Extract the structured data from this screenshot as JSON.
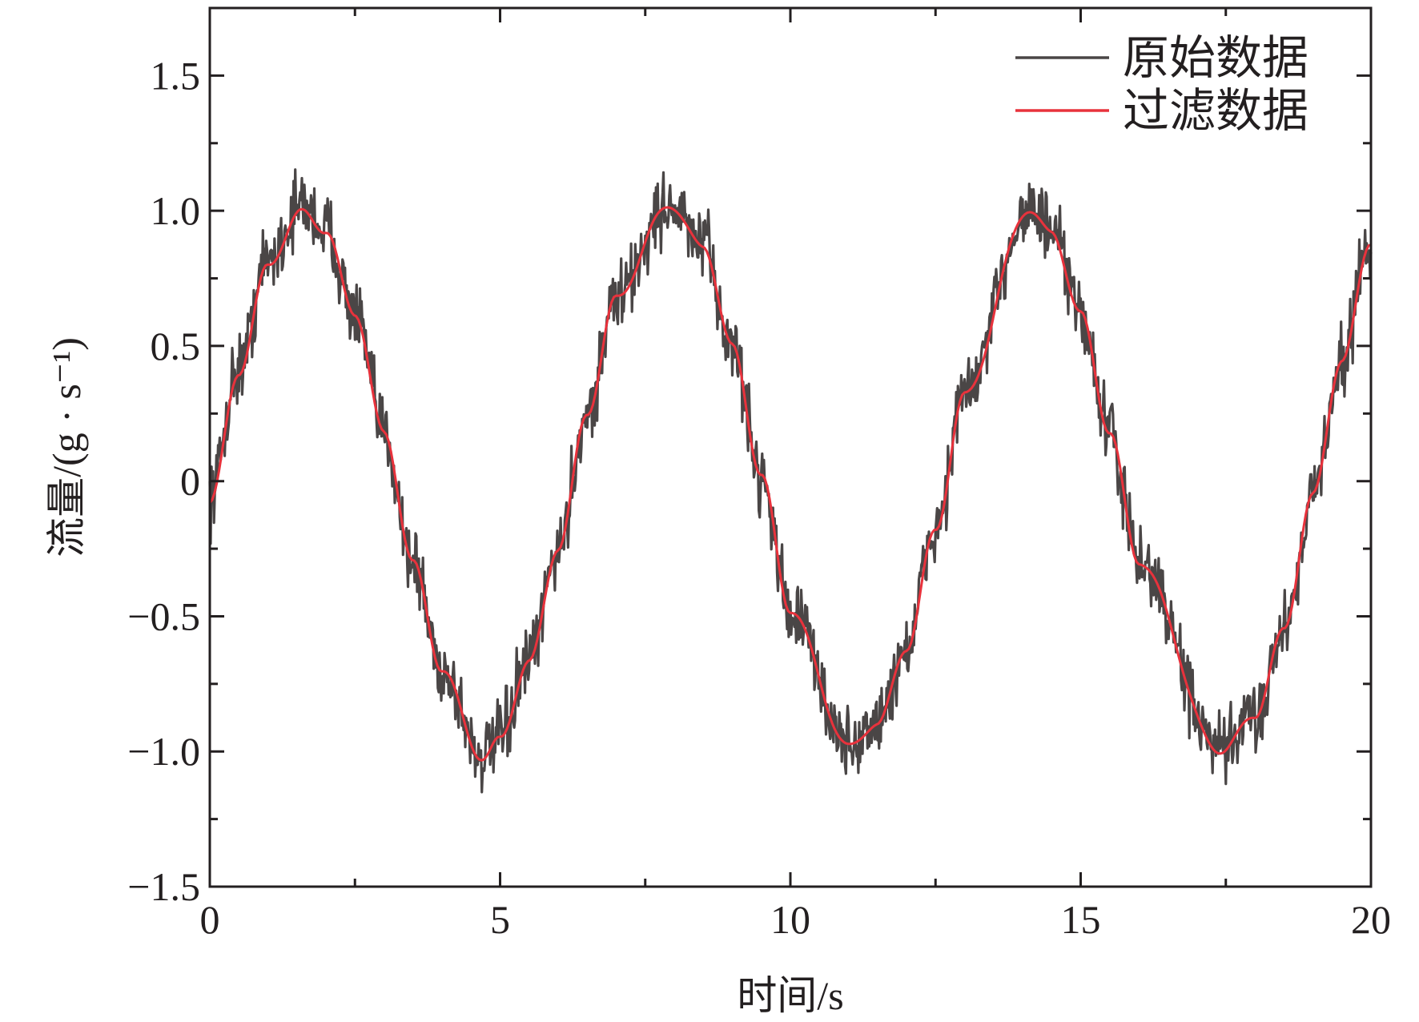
{
  "chart_data": {
    "type": "line",
    "title": "",
    "xlabel": "时间/s",
    "ylabel": "流量/(g · s⁻¹)",
    "xlim": [
      0,
      20
    ],
    "ylim": [
      -1.5,
      1.75
    ],
    "x_ticks": [
      "0",
      "5",
      "10",
      "15",
      "20"
    ],
    "y_ticks": [
      "−1.5",
      "−1.0",
      "−0.5",
      "0",
      "0.5",
      "1.0",
      "1.5"
    ],
    "grid": false,
    "legend_position": "top-right",
    "series": [
      {
        "name": "原始数据",
        "color": "#4a4646",
        "style": "noisy",
        "x": [
          0,
          0.5,
          1,
          1.6,
          2,
          2.5,
          3,
          3.5,
          4,
          4.7,
          5,
          5.5,
          6,
          6.5,
          7,
          7.9,
          8.5,
          9,
          9.5,
          10,
          11,
          11.5,
          12,
          12.5,
          13,
          14.1,
          14.5,
          15,
          15.5,
          16,
          17.4,
          18,
          18.5,
          19,
          19.5,
          20
        ],
        "y": [
          -0.05,
          0.42,
          0.82,
          1.02,
          0.93,
          0.62,
          0.18,
          -0.3,
          -0.7,
          -1.02,
          -0.95,
          -0.67,
          -0.25,
          0.25,
          0.68,
          1.02,
          0.87,
          0.5,
          0.02,
          -0.48,
          -0.98,
          -0.9,
          -0.62,
          -0.18,
          0.32,
          1.01,
          0.92,
          0.62,
          0.18,
          -0.3,
          -1.0,
          -0.87,
          -0.55,
          -0.05,
          0.45,
          0.9
        ]
      },
      {
        "name": "过滤数据",
        "color": "#e8323c",
        "style": "smooth",
        "x": [
          0,
          0.5,
          1,
          1.6,
          2,
          2.5,
          3,
          3.5,
          4,
          4.7,
          5,
          5.5,
          6,
          6.5,
          7,
          7.9,
          8.5,
          9,
          9.5,
          10,
          11,
          11.5,
          12,
          12.5,
          13,
          14.1,
          14.5,
          15,
          15.5,
          16,
          17.4,
          18,
          18.5,
          19,
          19.5,
          20
        ],
        "y": [
          -0.08,
          0.4,
          0.8,
          1.0,
          0.92,
          0.62,
          0.18,
          -0.3,
          -0.7,
          -1.03,
          -0.95,
          -0.67,
          -0.25,
          0.25,
          0.68,
          1.02,
          0.87,
          0.5,
          0.02,
          -0.48,
          -0.98,
          -0.9,
          -0.62,
          -0.18,
          0.32,
          1.0,
          0.92,
          0.62,
          0.18,
          -0.3,
          -1.0,
          -0.87,
          -0.55,
          -0.05,
          0.45,
          0.88
        ]
      }
    ]
  }
}
